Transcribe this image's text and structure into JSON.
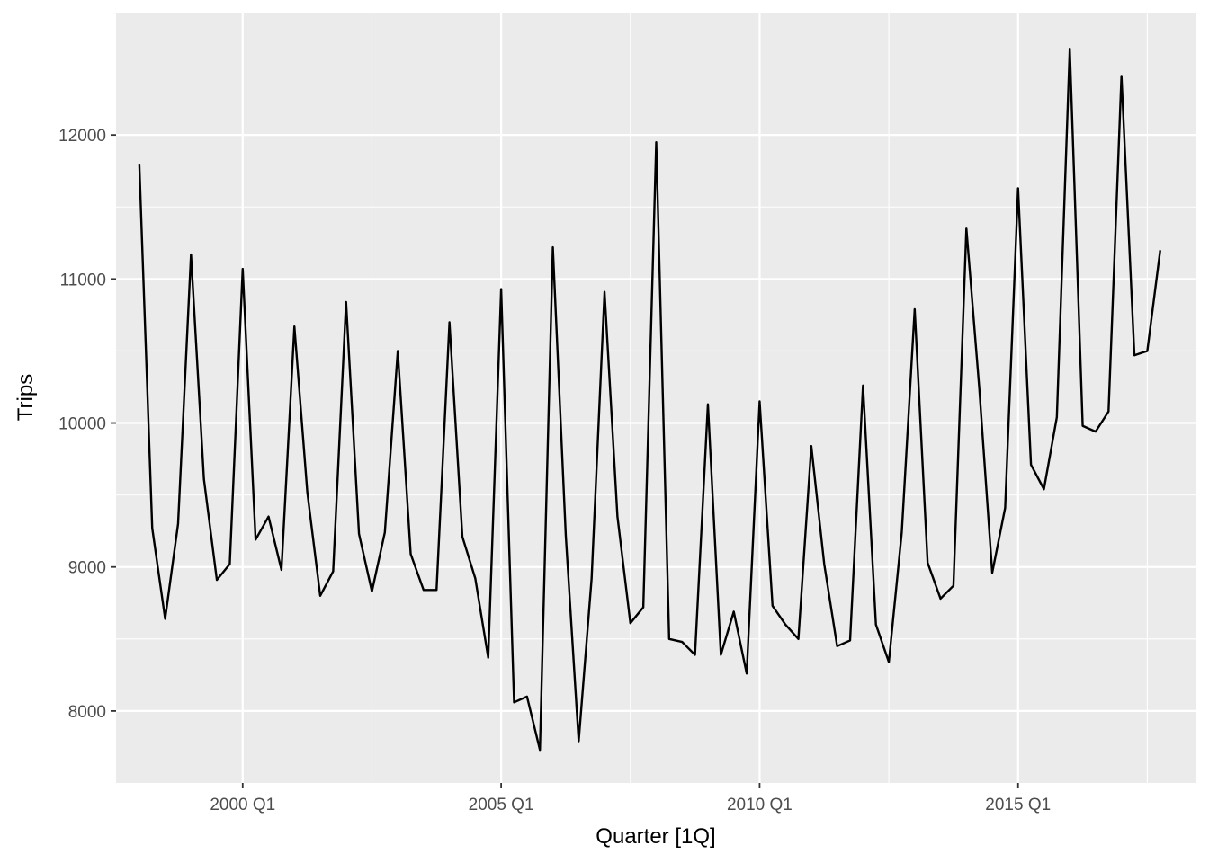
{
  "chart_data": {
    "type": "line",
    "title": "",
    "xlabel": "Quarter [1Q]",
    "ylabel": "Trips",
    "x_tick_labels": [
      "2000 Q1",
      "2005 Q1",
      "2010 Q1",
      "2015 Q1"
    ],
    "y_tick_labels": [
      "8000",
      "9000",
      "10000",
      "11000",
      "12000"
    ],
    "x_major_ticks": [
      2000,
      2005,
      2010,
      2015
    ],
    "x_minor_ticks": [
      1997.5,
      2002.5,
      2007.5,
      2012.5,
      2017.5
    ],
    "y_major_ticks": [
      8000,
      9000,
      10000,
      11000,
      12000
    ],
    "y_minor_ticks": [
      8500,
      9500,
      10500,
      11500
    ],
    "xlim": [
      1997.55,
      2018.45
    ],
    "ylim": [
      7500,
      12850
    ],
    "grid": true,
    "legend": "none",
    "colors": {
      "panel": "#ebebeb",
      "grid": "#ffffff",
      "line": "#000000",
      "tick_text": "#4d4d4d",
      "axis_title": "#000000",
      "tick_mark": "#333333"
    },
    "start_quarter": "1998 Q1",
    "series": [
      {
        "values": [
          11800,
          9270,
          8640,
          9300,
          11170,
          9610,
          8910,
          9020,
          11070,
          9190,
          9350,
          8980,
          10670,
          9520,
          8800,
          8970,
          10840,
          9230,
          8830,
          9240,
          10500,
          9090,
          8840,
          8840,
          10700,
          9210,
          8920,
          8370,
          10930,
          8060,
          8100,
          7730,
          11220,
          9220,
          7790,
          8920,
          10910,
          9350,
          8610,
          8720,
          11950,
          8500,
          8480,
          8390,
          10130,
          8390,
          8690,
          8260,
          10150,
          8730,
          8600,
          8500,
          9840,
          9020,
          8450,
          8490,
          10260,
          8600,
          8340,
          9240,
          10790,
          9030,
          8780,
          8870,
          11350,
          10240,
          8960,
          9410,
          11630,
          9710,
          9540,
          10040,
          12600,
          9980,
          9940,
          10080,
          12410,
          10470,
          10500,
          11200
        ]
      }
    ]
  }
}
